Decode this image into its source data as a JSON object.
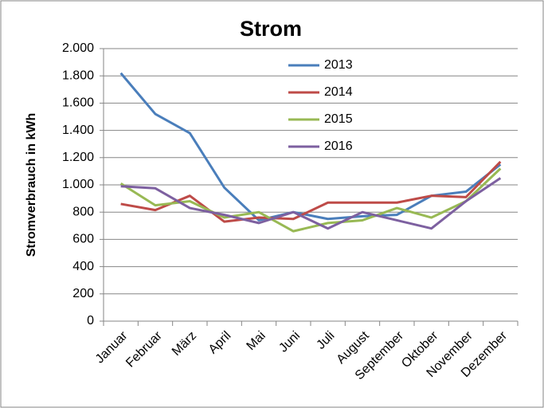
{
  "chart_data": {
    "type": "line",
    "title": "Strom",
    "y_label": "Stromverbrauch in kWh",
    "categories": [
      "Januar",
      "Februar",
      "März",
      "April",
      "Mai",
      "Juni",
      "Juli",
      "August",
      "September",
      "Oktober",
      "November",
      "Dezember"
    ],
    "series": [
      {
        "name": "2013",
        "color": "#4a7ebb",
        "values": [
          1820,
          1520,
          1380,
          980,
          740,
          800,
          750,
          770,
          780,
          920,
          950,
          1150
        ]
      },
      {
        "name": "2014",
        "color": "#be4b48",
        "values": [
          860,
          815,
          920,
          730,
          760,
          750,
          870,
          870,
          870,
          920,
          910,
          1170
        ]
      },
      {
        "name": "2015",
        "color": "#98b954",
        "values": [
          1010,
          850,
          880,
          760,
          800,
          660,
          720,
          740,
          830,
          760,
          880,
          1120
        ]
      },
      {
        "name": "2016",
        "color": "#7d60a0",
        "values": [
          990,
          975,
          830,
          780,
          720,
          800,
          680,
          800,
          740,
          680,
          880,
          1050
        ]
      }
    ],
    "ylim": [
      0,
      2000
    ],
    "yticks": [
      0,
      200,
      400,
      600,
      800,
      {
        "value": 1000,
        "label": "1.000"
      },
      {
        "value": 1200,
        "label": "1.200"
      },
      {
        "value": 1400,
        "label": "1.400"
      },
      {
        "value": 1600,
        "label": "1.600"
      },
      {
        "value": 1800,
        "label": "1.800"
      },
      {
        "value": 2000,
        "label": "2.000"
      }
    ],
    "grid": true,
    "legend": "top"
  }
}
